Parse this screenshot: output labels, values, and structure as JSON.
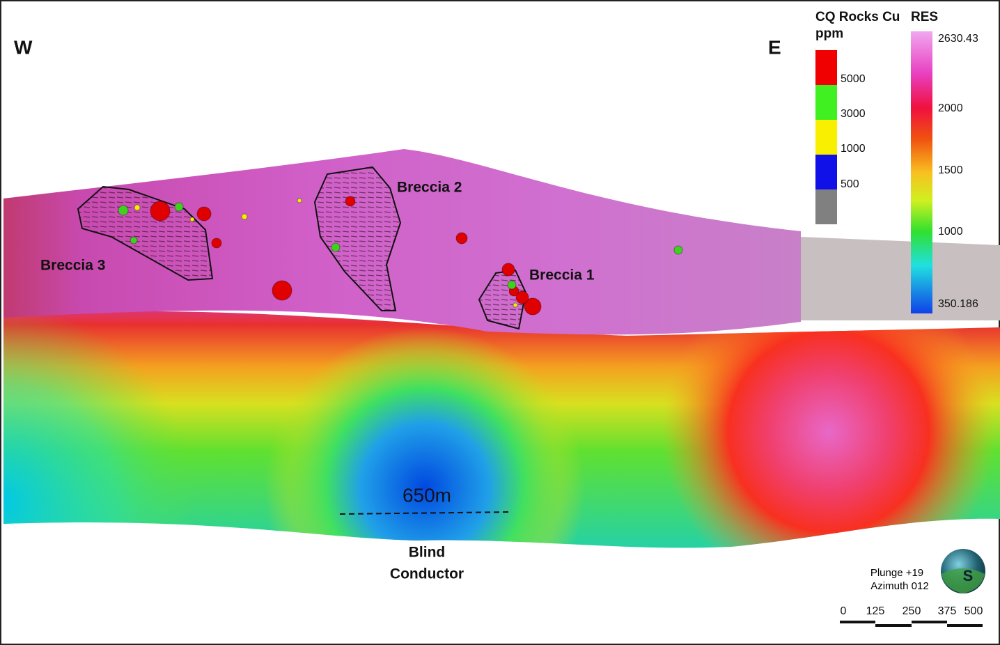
{
  "orientation": {
    "west": "W",
    "east": "E"
  },
  "cu_legend": {
    "title": [
      "CQ Rocks Cu",
      "ppm"
    ],
    "labels": [
      "5000",
      "3000",
      "1000",
      "500"
    ]
  },
  "res_legend": {
    "title": "RES",
    "labels": [
      "2630.43",
      "2000",
      "1500",
      "1000",
      "350.186"
    ]
  },
  "annotations": {
    "breccias": [
      "Breccia 3",
      "Breccia 2",
      "Breccia 1"
    ],
    "distance": "650m",
    "target": [
      "Blind",
      "Conductor"
    ]
  },
  "view": {
    "plunge": "Plunge +19",
    "azimuth": "Azimuth 012"
  },
  "scale_bar": {
    "labels": [
      "0",
      "125",
      "250",
      "375",
      "500"
    ]
  }
}
